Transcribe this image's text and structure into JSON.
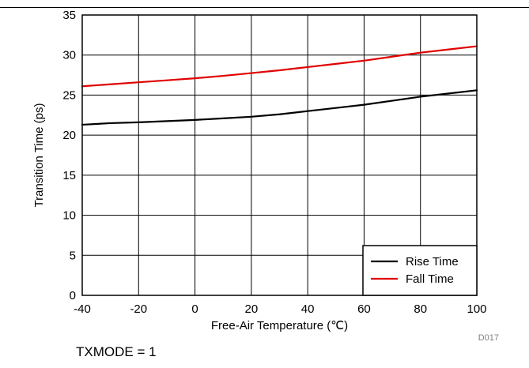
{
  "chart_data": {
    "type": "line",
    "title": "",
    "xlabel": "Free-Air Temperature (℃)",
    "ylabel": "Transition Time (ps)",
    "xlim": [
      -40,
      100
    ],
    "ylim": [
      0,
      35
    ],
    "xticks": [
      -40,
      -20,
      0,
      20,
      40,
      60,
      80,
      100
    ],
    "yticks": [
      0,
      5,
      10,
      15,
      20,
      25,
      30,
      35
    ],
    "x_tick_labels": [
      "-40",
      "-20",
      "0",
      "20",
      "40",
      "60",
      "80",
      "100"
    ],
    "y_tick_labels": [
      "0",
      "5",
      "10",
      "15",
      "20",
      "25",
      "30",
      "35"
    ],
    "grid": true,
    "legend_position": "bottom-right",
    "series": [
      {
        "name": "Rise Time",
        "color": "#000000",
        "x": [
          -40,
          -30,
          -20,
          -10,
          0,
          10,
          20,
          30,
          40,
          50,
          60,
          70,
          80,
          90,
          100
        ],
        "y": [
          21.3,
          21.5,
          21.6,
          21.75,
          21.9,
          22.1,
          22.3,
          22.6,
          23.0,
          23.4,
          23.8,
          24.3,
          24.8,
          25.2,
          25.6
        ]
      },
      {
        "name": "Fall Time",
        "color": "#e00000",
        "x": [
          -40,
          -30,
          -20,
          -10,
          0,
          10,
          20,
          30,
          40,
          50,
          60,
          70,
          80,
          90,
          100
        ],
        "y": [
          26.1,
          26.35,
          26.6,
          26.85,
          27.1,
          27.4,
          27.75,
          28.1,
          28.5,
          28.9,
          29.3,
          29.8,
          30.3,
          30.7,
          31.1
        ]
      }
    ],
    "figure_code": "D017"
  },
  "caption": "TXMODE = 1"
}
